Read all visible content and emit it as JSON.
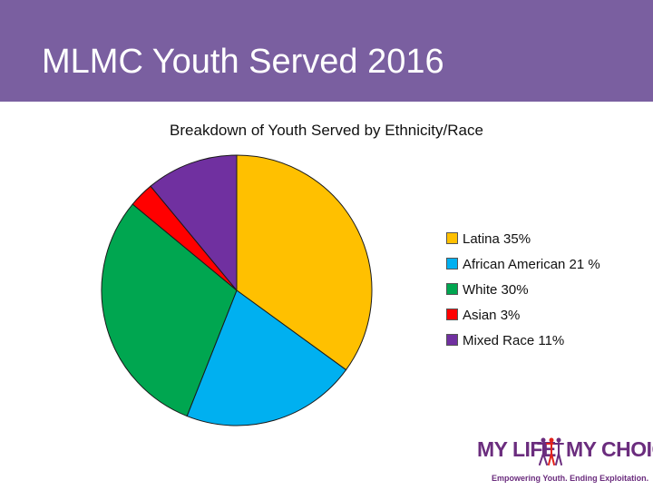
{
  "header": {
    "title": "MLMC Youth Served 2016",
    "color": "#7a5fa0"
  },
  "chart_data": {
    "type": "pie",
    "title": "Breakdown of Youth Served by Ethnicity/Race",
    "slices": [
      {
        "label": "Latina 35%",
        "value": 35,
        "color": "#ffc000"
      },
      {
        "label": "African American 21 %",
        "value": 21,
        "color": "#00b0f0"
      },
      {
        "label": "White 30%",
        "value": 30,
        "color": "#00a650"
      },
      {
        "label": "Asian 3%",
        "value": 3,
        "color": "#ff0000"
      },
      {
        "label": "Mixed Race 11%",
        "value": 11,
        "color": "#7030a0"
      }
    ],
    "legend_position": "right"
  },
  "logo": {
    "text_left": "MY LIFE",
    "text_right": "MY CHOICE",
    "tagline": "Empowering Youth. Ending Exploitation.",
    "colors": [
      "#6b2d7e",
      "#e2231a"
    ]
  }
}
